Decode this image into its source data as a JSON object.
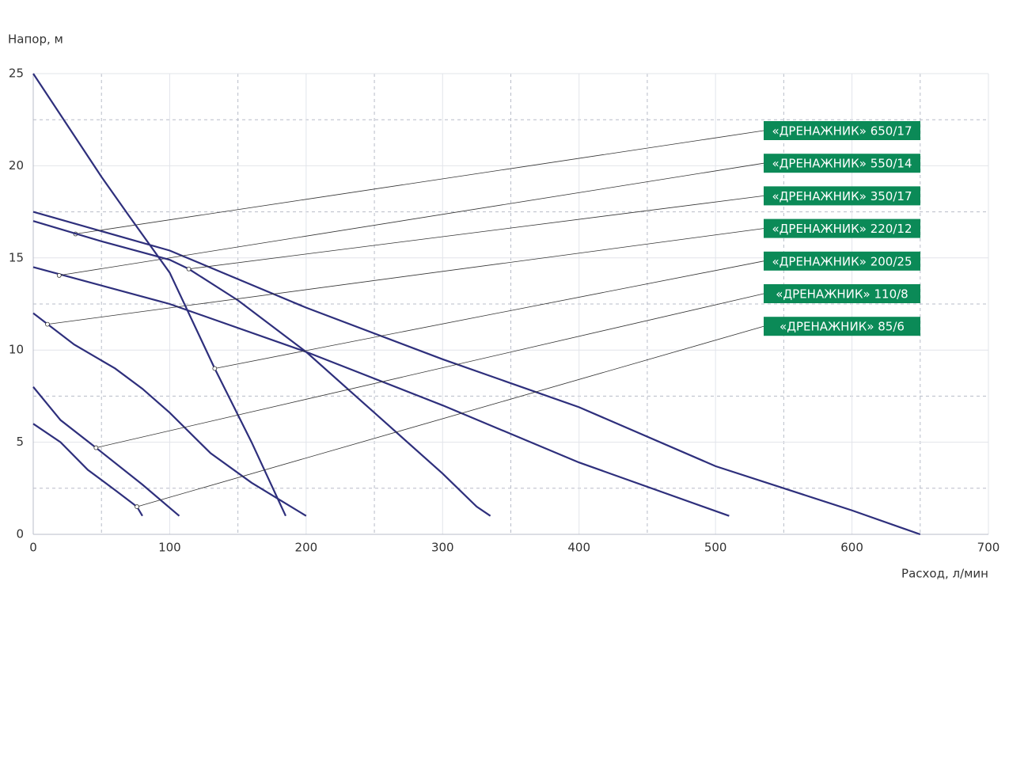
{
  "chart_data": {
    "type": "line",
    "y_label": "Напор, м",
    "x_label": "Расход, л/мин",
    "xlim": [
      0,
      700
    ],
    "xticks": [
      0,
      100,
      200,
      300,
      400,
      500,
      600,
      700
    ],
    "ylim": [
      0,
      25
    ],
    "yticks": [
      0,
      5,
      10,
      15,
      20,
      25
    ],
    "minor_xticks": [
      50,
      150,
      250,
      350,
      450,
      550,
      650
    ],
    "minor_yticks": [
      2.5,
      7.5,
      12.5,
      17.5,
      22.5
    ],
    "grid": true,
    "label_color": "#0b8a57",
    "series": [
      {
        "name": "«ДРЕНАЖНИК» 650/17",
        "color": "#2e2f7c",
        "x": [
          0,
          100,
          200,
          300,
          400,
          500,
          600,
          650
        ],
        "values": [
          17.5,
          15.4,
          12.3,
          9.5,
          6.9,
          3.7,
          1.3,
          0
        ],
        "marker_x": 31,
        "marker_y": 16.3
      },
      {
        "name": "«ДРЕНАЖНИК» 550/14",
        "color": "#2e2f7c",
        "x": [
          0,
          100,
          200,
          300,
          400,
          510
        ],
        "values": [
          14.5,
          12.5,
          9.9,
          7.0,
          3.9,
          1
        ],
        "marker_x": 19,
        "marker_y": 14.05
      },
      {
        "name": "«ДРЕНАЖНИК» 350/17",
        "color": "#2e2f7c",
        "x": [
          0,
          50,
          100,
          114,
          150,
          200,
          250,
          300,
          325,
          335
        ],
        "values": [
          17,
          15.9,
          14.9,
          14.4,
          12.7,
          9.9,
          6.6,
          3.3,
          1.5,
          1
        ],
        "marker_x": 114,
        "marker_y": 14.4
      },
      {
        "name": "«ДРЕНАЖНИК» 220/12",
        "color": "#2e2f7c",
        "x": [
          0,
          30,
          60,
          80,
          100,
          130,
          160,
          200
        ],
        "values": [
          12,
          10.3,
          9,
          7.9,
          6.6,
          4.4,
          2.8,
          1
        ],
        "marker_x": 10.4,
        "marker_y": 11.4
      },
      {
        "name": "«ДРЕНАЖНИК» 200/25",
        "color": "#2e2f7c",
        "x": [
          0,
          50,
          70,
          100,
          133,
          160,
          185
        ],
        "values": [
          25,
          19.4,
          17.3,
          14.2,
          9.0,
          5,
          1
        ],
        "marker_x": 133,
        "marker_y": 9.0
      },
      {
        "name": "«ДРЕНАЖНИК» 110/8",
        "color": "#2e2f7c",
        "x": [
          0,
          20,
          46,
          80,
          107
        ],
        "values": [
          8,
          6.2,
          4.7,
          2.7,
          1
        ],
        "marker_x": 46,
        "marker_y": 4.7
      },
      {
        "name": "«ДРЕНАЖНИК» 85/6",
        "color": "#2e2f7c",
        "x": [
          0,
          20,
          40,
          60,
          76,
          80
        ],
        "values": [
          6,
          5,
          3.5,
          2.4,
          1.5,
          1
        ],
        "marker_x": 76,
        "marker_y": 1.5
      }
    ]
  }
}
